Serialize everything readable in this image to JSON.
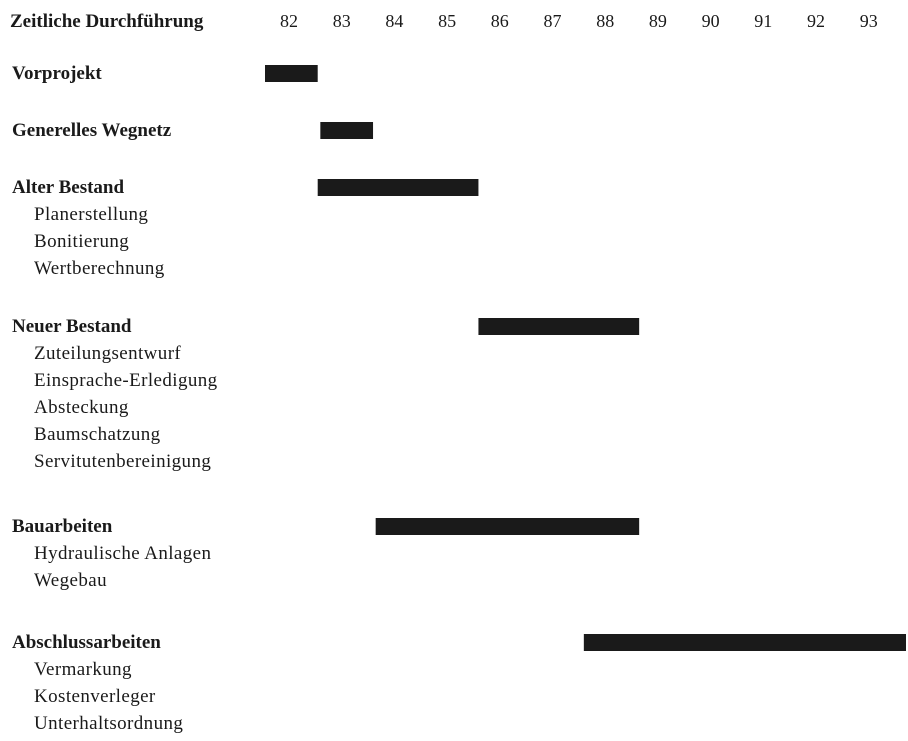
{
  "chart_data": {
    "type": "gantt",
    "title": "Zeitliche Durchführung",
    "years": [
      "82",
      "83",
      "84",
      "85",
      "86",
      "87",
      "88",
      "89",
      "90",
      "91",
      "92",
      "93"
    ],
    "bar_color": "#1a1a1a",
    "phases": [
      {
        "label": "Vorprojekt",
        "start": 82.0,
        "end": 83.0,
        "tasks": []
      },
      {
        "label": "Generelles Wegnetz",
        "start": 83.05,
        "end": 84.05,
        "tasks": []
      },
      {
        "label": "Alter Bestand",
        "start": 83.0,
        "end": 86.05,
        "tasks": [
          "Planerstellung",
          "Bonitierung",
          "Wertberechnung"
        ]
      },
      {
        "label": "Neuer Bestand",
        "start": 86.05,
        "end": 89.1,
        "tasks": [
          "Zuteilungsentwurf",
          "Einsprache-Erledigung",
          "Absteckung",
          "Baumschatzung",
          "Servitutenbereinigung"
        ]
      },
      {
        "label": "Bauarbeiten",
        "start": 84.1,
        "end": 89.1,
        "tasks": [
          "Hydraulische Anlagen",
          "Wegebau"
        ]
      },
      {
        "label": "Abschlussarbeiten",
        "start": 88.05,
        "end": 94.2,
        "tasks": [
          "Vermarkung",
          "Kostenverleger",
          "Unterhaltsordnung"
        ]
      }
    ]
  }
}
